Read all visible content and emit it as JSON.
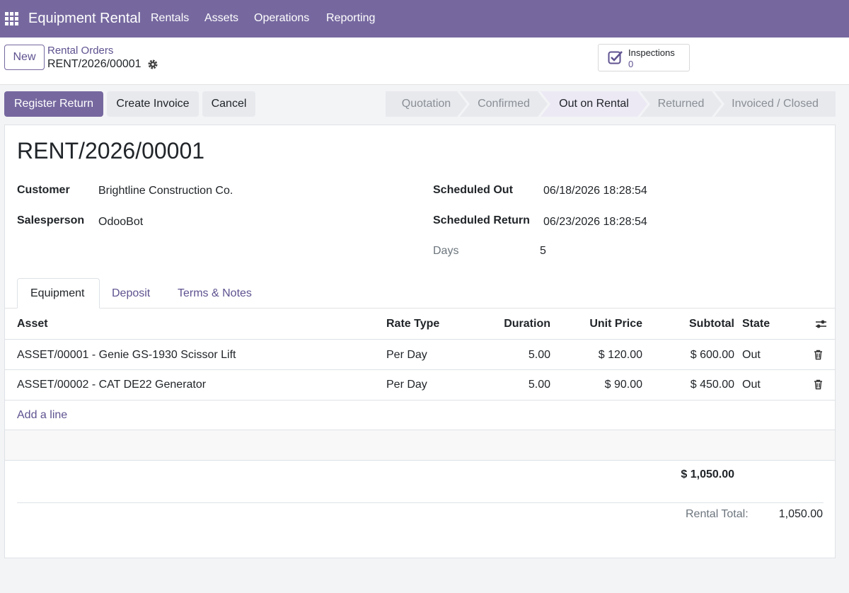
{
  "navbar": {
    "app": "Equipment Rental",
    "menu": [
      "Rentals",
      "Assets",
      "Operations",
      "Reporting"
    ]
  },
  "control": {
    "new": "New",
    "breadcrumb": "Rental Orders",
    "record": "RENT/2026/00001",
    "smart_button": {
      "label": "Inspections",
      "count": 0
    }
  },
  "actions": [
    "Register Return",
    "Create Invoice",
    "Cancel"
  ],
  "statusbar": {
    "stages": [
      "Quotation",
      "Confirmed",
      "Out on Rental",
      "Returned",
      "Invoiced / Closed"
    ],
    "active": 2
  },
  "form": {
    "title": "RENT/2026/00001",
    "left": [
      {
        "label": "Customer",
        "value": "Brightline Construction Co."
      },
      {
        "label": "Salesperson",
        "value": "OdooBot"
      }
    ],
    "right": [
      {
        "label": "Scheduled Out",
        "value": "06/18/2026 18:28:54"
      },
      {
        "label": "Scheduled Return",
        "value": "06/23/2026 18:28:54"
      },
      {
        "label": "Days",
        "value": 5
      }
    ]
  },
  "tabs": {
    "items": [
      "Equipment",
      "Deposit",
      "Terms & Notes"
    ],
    "active": 0
  },
  "table": {
    "columns": [
      "Asset",
      "Rate Type",
      "Duration",
      "Unit Price",
      "Subtotal",
      "State"
    ],
    "rows": [
      [
        "ASSET/00001 - Genie GS-1930 Scissor Lift",
        "Per Day",
        "5.00",
        "$ 120.00",
        "$ 600.00",
        "Out"
      ],
      [
        "ASSET/00002 - CAT DE22 Generator",
        "Per Day",
        "5.00",
        "$ 90.00",
        "$ 450.00",
        "Out"
      ]
    ],
    "add_line": "Add a line",
    "total": "$ 1,050.00"
  },
  "summary": {
    "label": "Rental Total:",
    "value": "1,050.00"
  }
}
